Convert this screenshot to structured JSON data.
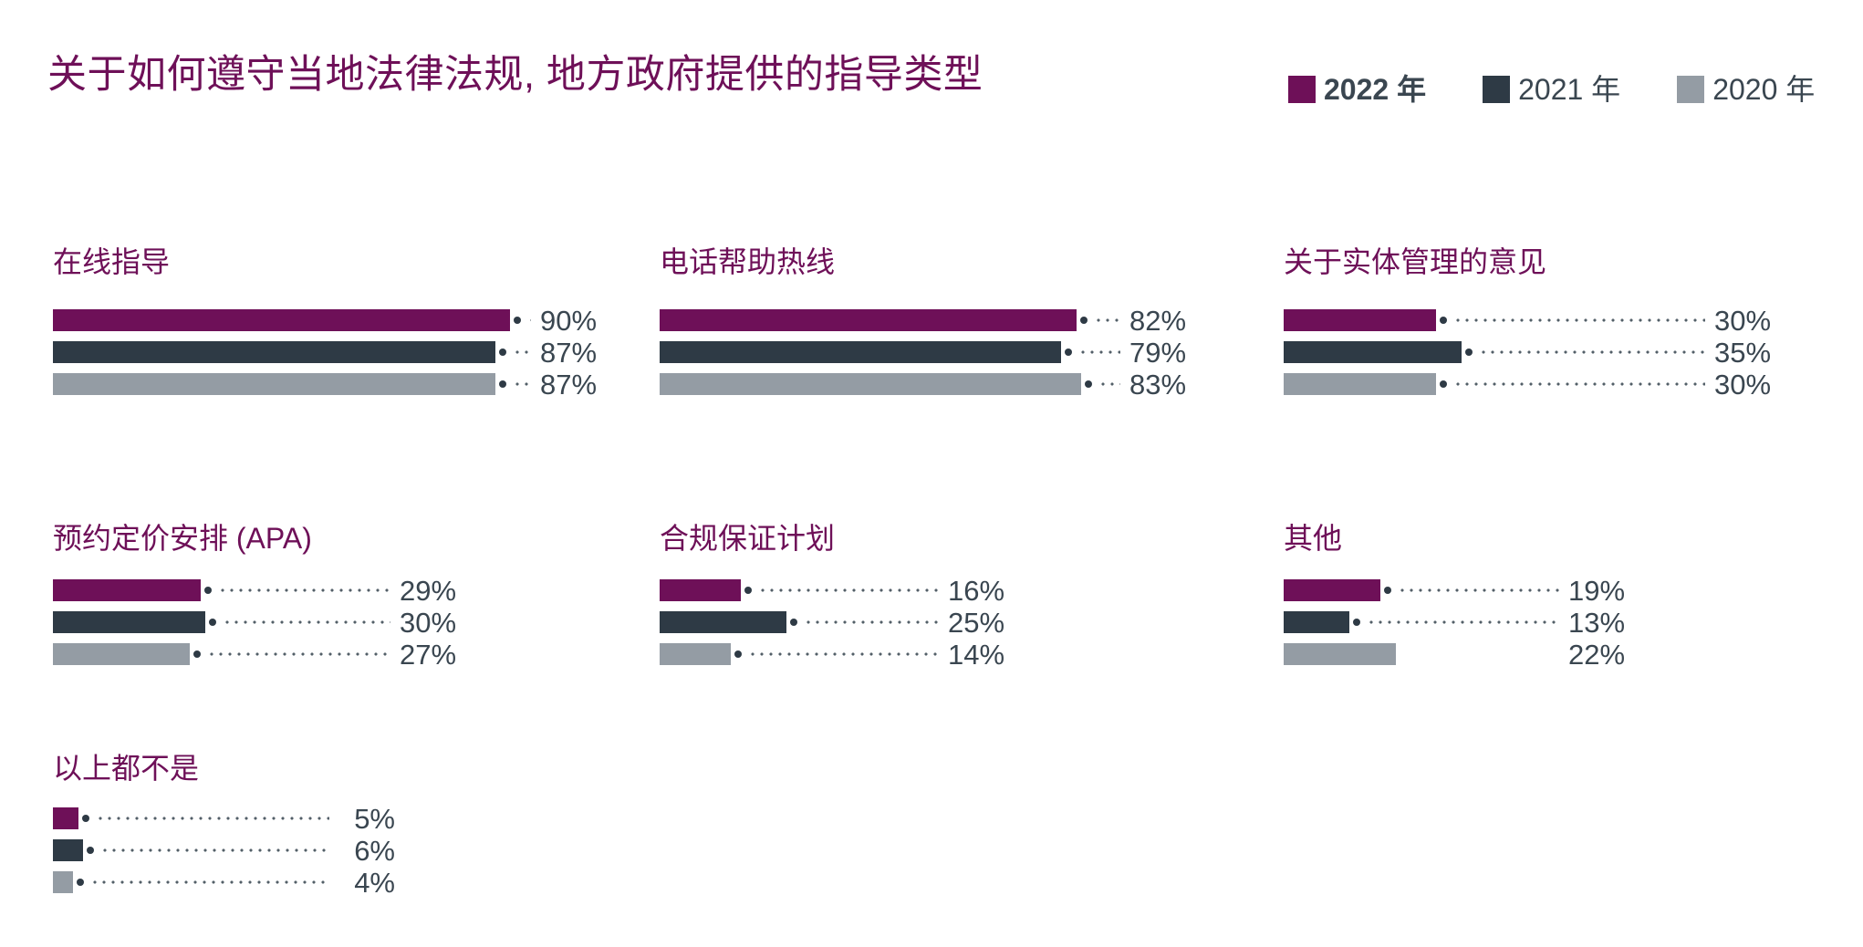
{
  "title": "关于如何遵守当地法律法规, 地方政府提供的指导类型",
  "legend": [
    {
      "label": "2022 年",
      "color": "#6E1058",
      "bold": true
    },
    {
      "label": "2021 年",
      "color": "#2E3A45",
      "bold": false
    },
    {
      "label": "2020 年",
      "color": "#949CA4",
      "bold": false
    }
  ],
  "chart_data": {
    "type": "bar",
    "orientation": "horizontal",
    "unit": "%",
    "title": "关于如何遵守当地法律法规, 地方政府提供的指导类型",
    "xlim": [
      0,
      100
    ],
    "grid": false,
    "legend_position": "top-right",
    "series_names": [
      "2022 年",
      "2021 年",
      "2020 年"
    ],
    "series_colors": [
      "#6E1058",
      "#2E3A45",
      "#949CA4"
    ],
    "panels": [
      {
        "category": "在线指导",
        "values": [
          90,
          87,
          87
        ],
        "labels": [
          "90%",
          "87%",
          "87%"
        ],
        "leader": [
          true,
          true,
          true
        ]
      },
      {
        "category": "电话帮助热线",
        "values": [
          82,
          79,
          83
        ],
        "labels": [
          "82%",
          "79%",
          "83%"
        ],
        "leader": [
          true,
          true,
          true
        ]
      },
      {
        "category": "关于实体管理的意见",
        "values": [
          30,
          35,
          30
        ],
        "labels": [
          "30%",
          "35%",
          "30%"
        ],
        "leader": [
          true,
          true,
          true
        ]
      },
      {
        "category": "预约定价安排 (APA)",
        "values": [
          29,
          30,
          27
        ],
        "labels": [
          "29%",
          "30%",
          "27%"
        ],
        "leader": [
          true,
          true,
          true
        ]
      },
      {
        "category": "合规保证计划",
        "values": [
          16,
          25,
          14
        ],
        "labels": [
          "16%",
          "25%",
          "14%"
        ],
        "leader": [
          true,
          true,
          true
        ]
      },
      {
        "category": "其他",
        "values": [
          19,
          13,
          22
        ],
        "labels": [
          "19%",
          "13%",
          "22%"
        ],
        "leader": [
          true,
          true,
          false
        ]
      },
      {
        "category": "以上都不是",
        "values": [
          5,
          6,
          4
        ],
        "labels": [
          "5%",
          "6%",
          "4%"
        ],
        "leader": [
          true,
          true,
          true
        ]
      }
    ]
  }
}
